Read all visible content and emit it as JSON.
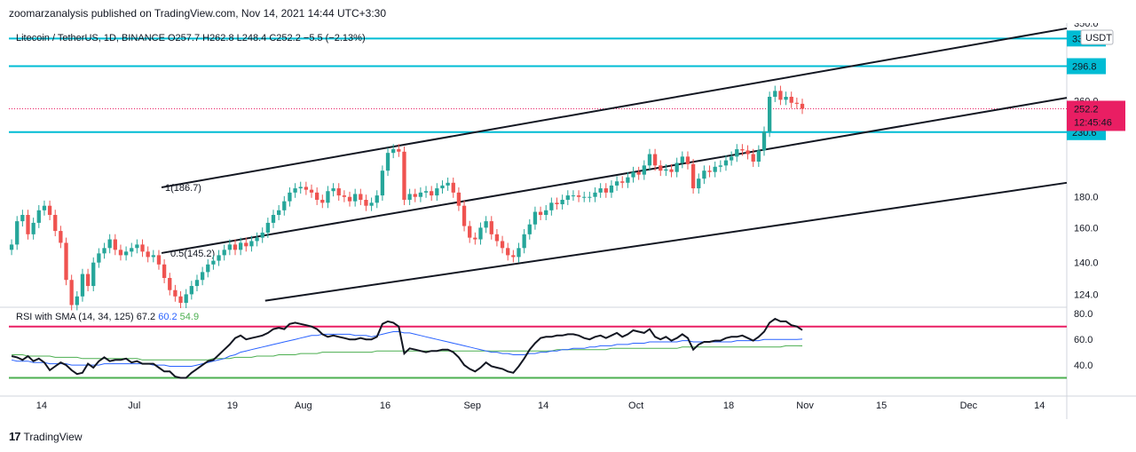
{
  "publisher_line": "zoomarzanalysis published on TradingView.com, Nov 14, 2021 14:44 UTC+3:30",
  "brand": {
    "logo_glyph": "17",
    "name": "TradingView"
  },
  "colors": {
    "up": "#26a69a",
    "down": "#ef5350",
    "level": "#00bcd4",
    "channel": "#131722",
    "rsi": "#131722",
    "sma_fast": "#2962ff",
    "sma_slow": "#4caf50",
    "rsi_upper": "#e91e63",
    "rsi_lower": "#4caf50",
    "price_tag": "#e91e63"
  },
  "chart_data": {
    "type": "candlestick",
    "symbol_line": "Litecoin / TetherUS, 1D, BINANCE",
    "ohlc_labels": {
      "O": "O257.7",
      "H": "H262.8",
      "L": "L248.4",
      "C": "C252.2",
      "chg": "−5.5 (−2.13%)"
    },
    "currency_badge": "USDT",
    "y_axis": {
      "scale": "log",
      "ticks": [
        "350.0",
        "260.0",
        "180.0",
        "160.0",
        "140.0",
        "124.0"
      ],
      "range": [
        118,
        350
      ]
    },
    "x_axis": {
      "ticks": [
        "14",
        "Jul",
        "19",
        "Aug",
        "16",
        "Sep",
        "14",
        "Oct",
        "18",
        "Nov",
        "15",
        "Dec",
        "14"
      ],
      "start_date": "2021-06-08",
      "end_date": "2021-12-19"
    },
    "horizontal_levels": [
      {
        "value": 330,
        "label": "330.0"
      },
      {
        "value": 296.8,
        "label": "296.8"
      },
      {
        "value": 230.6,
        "label": "230.6"
      }
    ],
    "last_price": {
      "value": 252.2,
      "label": "252.2",
      "countdown": "12:45:46"
    },
    "channel_labels": [
      {
        "text": "1(186.7)"
      },
      {
        "text": "0.5(145.2)"
      }
    ],
    "channel_lines": [
      {
        "name": "upper",
        "x1": "2021-07-06",
        "y1": 186.7,
        "x2": "2021-12-19",
        "y2": 343
      },
      {
        "name": "middle",
        "x1": "2021-07-06",
        "y1": 145.2,
        "x2": "2021-12-19",
        "y2": 263
      },
      {
        "name": "lower",
        "x1": "2021-07-25",
        "y1": 121,
        "x2": "2021-12-19",
        "y2": 190
      }
    ],
    "closes": [
      150,
      164,
      168,
      156,
      163,
      171,
      174,
      168,
      158,
      151,
      131,
      119,
      123,
      134,
      128,
      140,
      145,
      148,
      153,
      147,
      144,
      146,
      148,
      150,
      146,
      143,
      144,
      139,
      132,
      126,
      123,
      120,
      124,
      128,
      131,
      135,
      139,
      141,
      144,
      147,
      150,
      147,
      151,
      149,
      152,
      154,
      157,
      163,
      168,
      171,
      177,
      183,
      186,
      187,
      185,
      183,
      178,
      176,
      184,
      186,
      181,
      180,
      177,
      182,
      178,
      174,
      176,
      181,
      199,
      213,
      216,
      214,
      178,
      182,
      180,
      183,
      184,
      181,
      186,
      188,
      190,
      183,
      174,
      161,
      154,
      153,
      160,
      164,
      156,
      152,
      148,
      144,
      143,
      148,
      156,
      162,
      170,
      168,
      171,
      176,
      175,
      178,
      181,
      181,
      180,
      180,
      180,
      183,
      186,
      183,
      188,
      191,
      190,
      194,
      198,
      196,
      203,
      212,
      203,
      199,
      200,
      198,
      205,
      210,
      204,
      186,
      193,
      199,
      198,
      202,
      203,
      207,
      210,
      216,
      215,
      212,
      206,
      215,
      231,
      264,
      270,
      261,
      264,
      258,
      257,
      252.2
    ],
    "rsi": {
      "label": "RSI with SMA (14, 34, 125)",
      "values_label": [
        "67.2",
        "60.2",
        "54.9"
      ],
      "ticks": [
        "80.0",
        "60.0",
        "40.0"
      ],
      "levels": [
        70,
        30
      ],
      "range": [
        20,
        85
      ],
      "rsi_values": [
        47,
        46,
        44,
        47,
        43,
        45,
        42,
        36,
        39,
        42,
        40,
        36,
        33,
        34,
        41,
        38,
        43,
        46,
        43,
        44,
        44,
        45,
        42,
        43,
        41,
        41,
        41,
        38,
        35,
        35,
        31,
        30,
        30,
        34,
        37,
        40,
        43,
        44,
        48,
        52,
        56,
        61,
        63,
        60,
        61,
        62,
        63,
        65,
        68,
        69,
        68,
        72,
        73,
        72,
        71,
        70,
        68,
        64,
        62,
        63,
        62,
        61,
        60,
        60,
        61,
        60,
        60,
        62,
        72,
        74,
        73,
        70,
        49,
        53,
        52,
        51,
        50,
        51,
        51,
        52,
        52,
        50,
        46,
        40,
        37,
        35,
        38,
        42,
        39,
        38,
        37,
        35,
        34,
        39,
        45,
        52,
        57,
        61,
        62,
        62,
        63,
        63,
        64,
        64,
        63,
        61,
        60,
        62,
        63,
        61,
        63,
        65,
        62,
        64,
        67,
        66,
        65,
        68,
        62,
        60,
        62,
        59,
        61,
        64,
        61,
        52,
        56,
        58,
        58,
        59,
        59,
        61,
        62,
        62,
        63,
        61,
        59,
        62,
        66,
        73,
        76,
        74,
        74,
        71,
        70,
        67.2
      ],
      "sma_fast": [
        44,
        43,
        43,
        43,
        42,
        42,
        42,
        41,
        41,
        41,
        41,
        40,
        40,
        40,
        40,
        40,
        40,
        41,
        41,
        41,
        41,
        41,
        41,
        41,
        41,
        41,
        40,
        40,
        40,
        39,
        39,
        39,
        39,
        39,
        40,
        41,
        42,
        43,
        44,
        45,
        47,
        48,
        50,
        51,
        52,
        53,
        54,
        55,
        56,
        57,
        58,
        59,
        60,
        61,
        62,
        63,
        63,
        64,
        64,
        64,
        64,
        64,
        64,
        63,
        63,
        63,
        62,
        63,
        64,
        65,
        66,
        66,
        65,
        65,
        64,
        63,
        62,
        61,
        60,
        59,
        58,
        57,
        56,
        55,
        54,
        53,
        52,
        51,
        50,
        50,
        49,
        49,
        48,
        48,
        48,
        49,
        49,
        50,
        50,
        51,
        51,
        52,
        52,
        53,
        53,
        53,
        54,
        54,
        55,
        55,
        55,
        56,
        56,
        56,
        57,
        57,
        57,
        58,
        58,
        58,
        58,
        58,
        58,
        59,
        59,
        58,
        58,
        58,
        58,
        58,
        58,
        58,
        58,
        59,
        59,
        59,
        59,
        59,
        60,
        60,
        60,
        60,
        60,
        60,
        60,
        60.2
      ],
      "sma_slow": [
        48,
        48,
        48,
        47,
        47,
        47,
        47,
        47,
        46,
        46,
        46,
        46,
        46,
        45,
        45,
        45,
        45,
        45,
        45,
        45,
        45,
        45,
        45,
        45,
        44,
        44,
        44,
        44,
        44,
        44,
        44,
        44,
        44,
        44,
        44,
        44,
        44,
        45,
        45,
        45,
        45,
        46,
        46,
        46,
        46,
        47,
        47,
        47,
        47,
        48,
        48,
        48,
        48,
        49,
        49,
        49,
        49,
        50,
        50,
        50,
        50,
        50,
        50,
        50,
        50,
        50,
        50,
        51,
        51,
        51,
        51,
        51,
        51,
        51,
        51,
        51,
        51,
        51,
        51,
        51,
        51,
        51,
        51,
        51,
        51,
        51,
        51,
        51,
        51,
        51,
        51,
        51,
        51,
        51,
        51,
        51,
        51,
        51,
        51,
        51,
        52,
        52,
        52,
        52,
        52,
        52,
        52,
        52,
        52,
        52,
        53,
        53,
        53,
        53,
        53,
        53,
        53,
        53,
        53,
        53,
        53,
        53,
        53,
        54,
        54,
        54,
        54,
        54,
        54,
        54,
        54,
        54,
        54,
        54,
        54,
        54,
        54,
        54,
        54,
        54,
        54,
        54,
        55,
        55,
        55,
        54.9
      ]
    }
  }
}
